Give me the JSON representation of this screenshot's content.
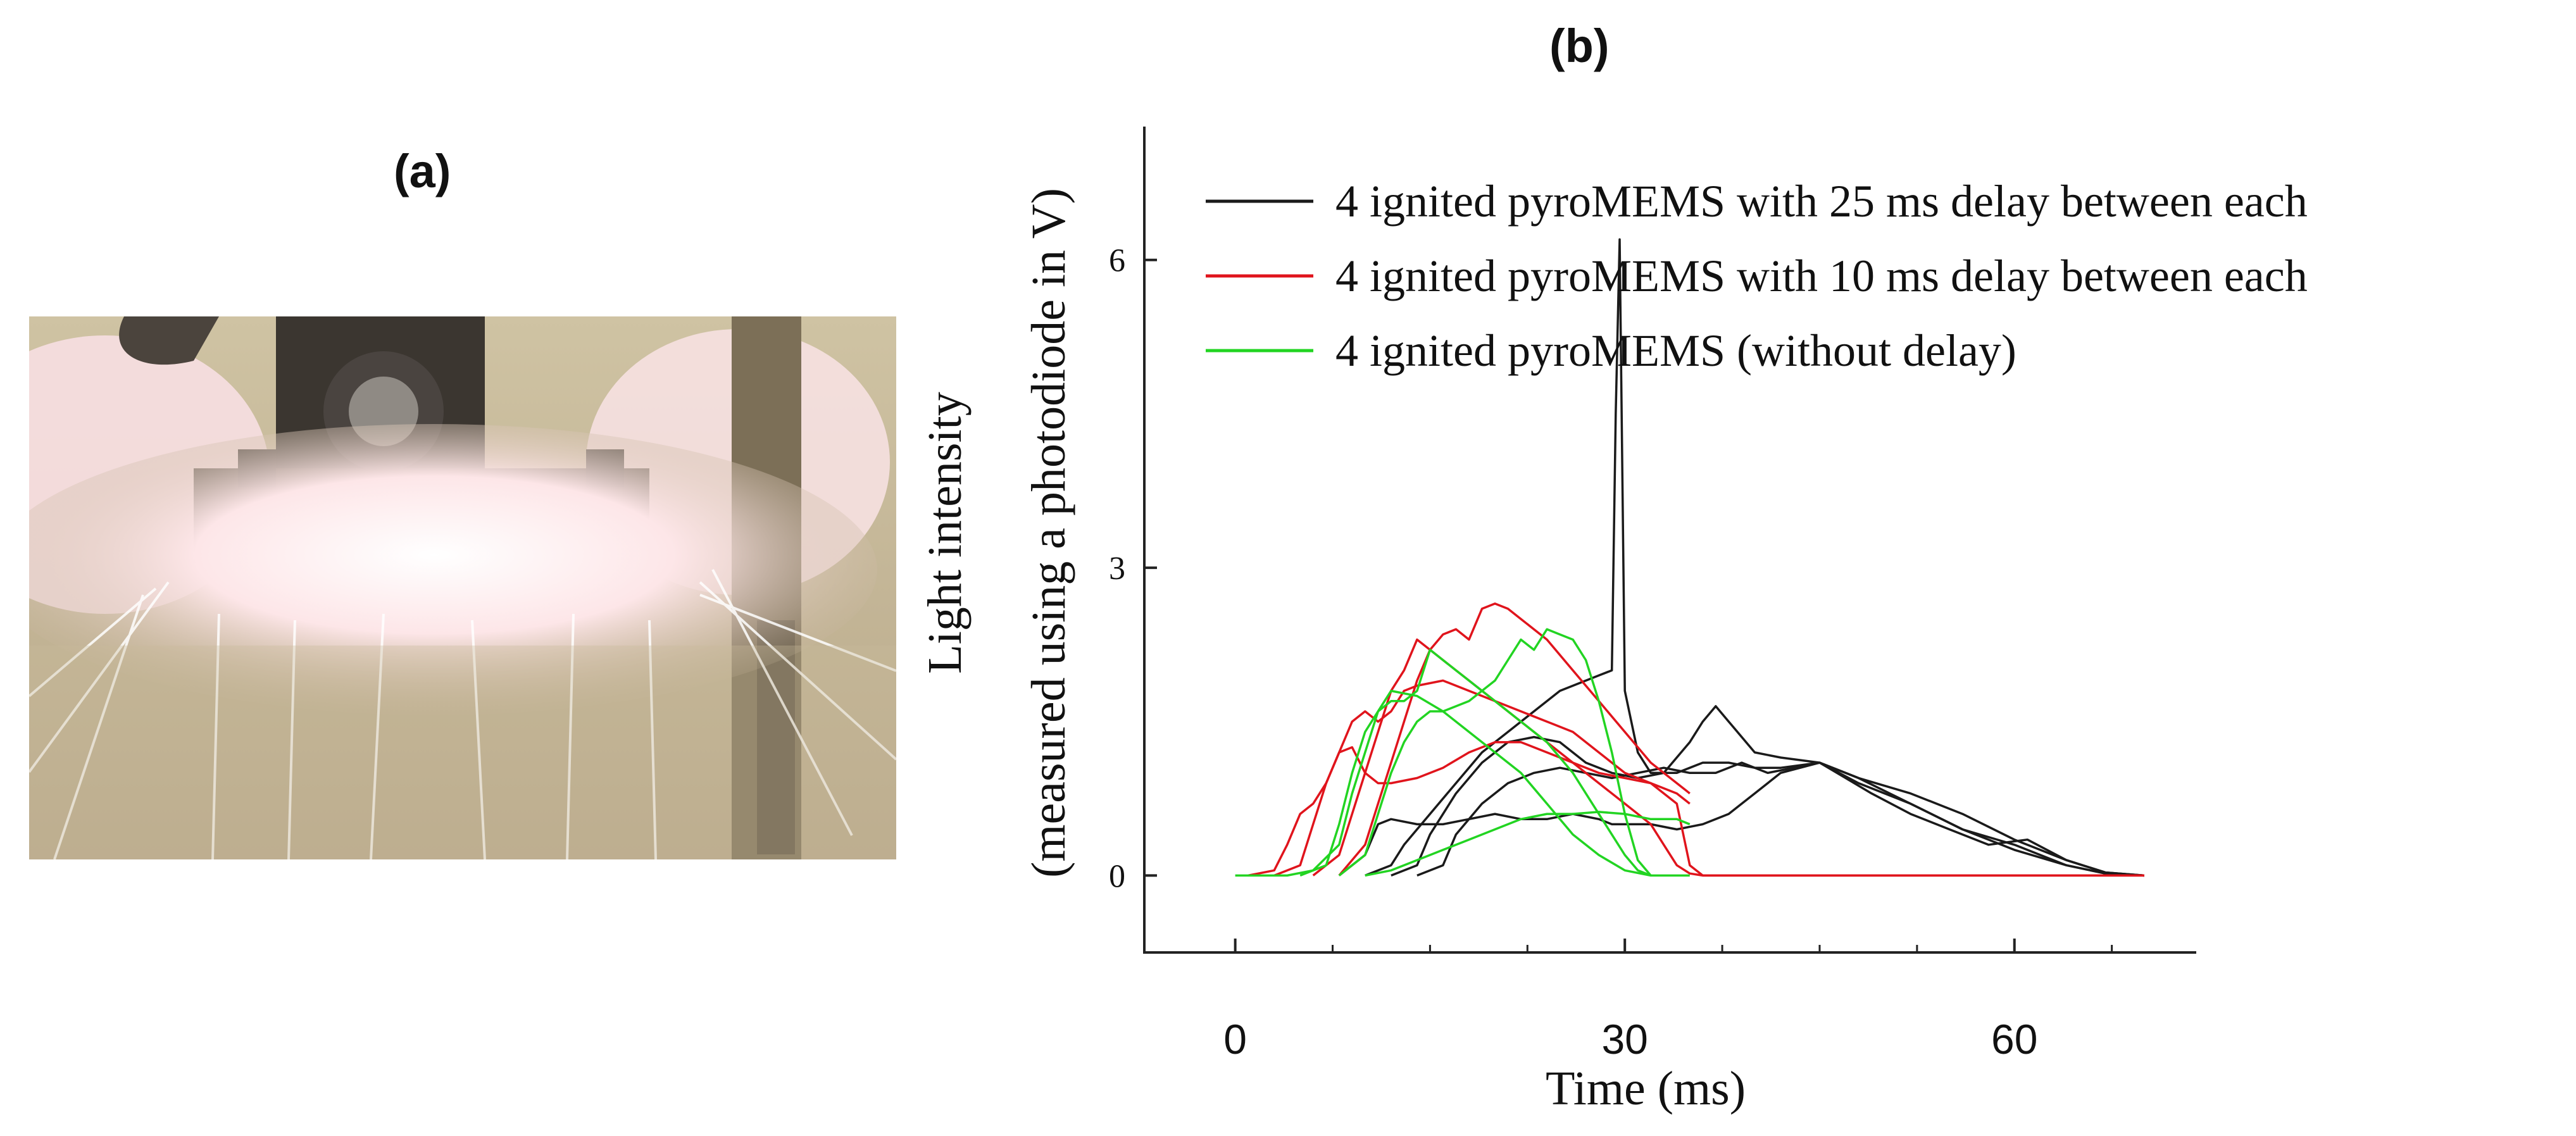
{
  "panels": {
    "a_label": "(a)",
    "b_label": "(b)"
  },
  "photo": {
    "subject": "pyroMEMS ignition photograph with sparks"
  },
  "colors": {
    "black": "#1a1a1a",
    "red": "#e0141c",
    "green": "#22d422"
  },
  "chart_data": {
    "type": "line",
    "xlabel": "Time (ms)",
    "ylabel_line1": "Light intensity",
    "ylabel_line2": "(measured using a photodiode in V)",
    "xlim": [
      -7,
      74
    ],
    "ylim": [
      -0.75,
      7.3
    ],
    "xticks": [
      0,
      30,
      60
    ],
    "xtick_labels": [
      "0",
      "30",
      "60"
    ],
    "xminor": [
      -7.5,
      7.5,
      15,
      22.5,
      37.5,
      45,
      52.5,
      67.5,
      75
    ],
    "yticks": [
      0,
      3,
      6
    ],
    "ytick_labels": [
      "0",
      "3",
      "6"
    ],
    "legend_position": "top-right",
    "legend": [
      {
        "label": "4 ignited pyroMEMS with 25 ms delay between each",
        "color": "#1a1a1a"
      },
      {
        "label": "4 ignited pyroMEMS with 10 ms delay between each",
        "color": "#e0141c"
      },
      {
        "label": "4 ignited pyroMEMS (without delay)",
        "color": "#22d422"
      }
    ],
    "series": [
      {
        "name": "25 ms delay trace 1",
        "color": "#1a1a1a",
        "x": [
          8,
          10,
          11,
          12,
          14,
          16,
          18,
          20,
          22,
          24,
          26,
          28,
          29,
          30,
          32,
          34,
          36,
          38,
          40,
          42,
          45,
          48,
          52,
          56,
          60,
          64,
          67,
          70
        ],
        "y": [
          0,
          0.2,
          0.5,
          0.55,
          0.5,
          0.5,
          0.55,
          0.6,
          0.55,
          0.55,
          0.6,
          0.55,
          0.5,
          0.5,
          0.5,
          0.45,
          0.5,
          0.6,
          0.8,
          1.0,
          1.1,
          0.95,
          0.8,
          0.6,
          0.35,
          0.15,
          0.03,
          0
        ]
      },
      {
        "name": "25 ms delay trace 2",
        "color": "#1a1a1a",
        "x": [
          10,
          12,
          13,
          15,
          17,
          19,
          21,
          23,
          25,
          27,
          28,
          29,
          29.3,
          29.6,
          30,
          31,
          32,
          34,
          36,
          38,
          40,
          42,
          45,
          48,
          52,
          56,
          60,
          64,
          67,
          70
        ],
        "y": [
          0,
          0.1,
          0.3,
          0.6,
          0.9,
          1.2,
          1.4,
          1.6,
          1.8,
          1.9,
          1.95,
          2.0,
          4.5,
          6.2,
          1.8,
          1.2,
          1.0,
          1.0,
          1.1,
          1.1,
          1.05,
          1.05,
          1.1,
          0.95,
          0.7,
          0.45,
          0.25,
          0.1,
          0.02,
          0
        ]
      },
      {
        "name": "25 ms delay trace 3",
        "color": "#1a1a1a",
        "x": [
          12,
          14,
          15,
          17,
          19,
          21,
          23,
          25,
          27,
          29,
          31,
          33,
          35,
          36,
          37,
          38,
          40,
          42,
          45,
          48,
          52,
          56,
          60,
          64,
          67,
          70
        ],
        "y": [
          0,
          0.1,
          0.4,
          0.8,
          1.1,
          1.3,
          1.35,
          1.3,
          1.1,
          1.0,
          0.95,
          1.0,
          1.3,
          1.5,
          1.65,
          1.5,
          1.2,
          1.15,
          1.1,
          0.9,
          0.7,
          0.45,
          0.3,
          0.1,
          0.02,
          0
        ]
      },
      {
        "name": "25 ms delay trace 4",
        "color": "#1a1a1a",
        "x": [
          14,
          16,
          17,
          19,
          21,
          23,
          25,
          27,
          29,
          31,
          33,
          35,
          37,
          39,
          41,
          43,
          45,
          47,
          49,
          52,
          55,
          58,
          61,
          64,
          67,
          70
        ],
        "y": [
          0,
          0.1,
          0.4,
          0.7,
          0.9,
          1.0,
          1.05,
          1.0,
          0.95,
          1.0,
          1.05,
          1.0,
          1.0,
          1.1,
          1.0,
          1.05,
          1.1,
          0.95,
          0.8,
          0.6,
          0.45,
          0.3,
          0.35,
          0.15,
          0.03,
          0
        ]
      },
      {
        "name": "10 ms delay trace 1",
        "color": "#e0141c",
        "x": [
          1,
          3,
          4,
          5,
          6,
          7,
          8,
          9,
          10,
          11,
          12,
          14,
          16,
          18,
          20,
          22,
          24,
          26,
          28,
          30,
          32,
          34,
          35,
          36,
          40,
          50,
          60,
          70
        ],
        "y": [
          0,
          0.05,
          0.3,
          0.6,
          0.7,
          0.9,
          1.2,
          1.25,
          1.0,
          0.9,
          0.9,
          0.95,
          1.05,
          1.2,
          1.3,
          1.3,
          1.2,
          1.1,
          1.0,
          0.95,
          0.9,
          0.7,
          0.1,
          0,
          0,
          0,
          0,
          0
        ]
      },
      {
        "name": "10 ms delay trace 2",
        "color": "#e0141c",
        "x": [
          3,
          5,
          6,
          7,
          8,
          9,
          10,
          11,
          12,
          13,
          14,
          16,
          18,
          20,
          22,
          24,
          26,
          28,
          30,
          32,
          34,
          35
        ],
        "y": [
          0,
          0.1,
          0.5,
          0.9,
          1.2,
          1.5,
          1.6,
          1.5,
          1.6,
          1.8,
          1.85,
          1.9,
          1.8,
          1.7,
          1.6,
          1.5,
          1.4,
          1.2,
          1.0,
          0.9,
          0.8,
          0.7
        ]
      },
      {
        "name": "10 ms delay trace 3",
        "color": "#e0141c",
        "x": [
          6,
          8,
          9,
          10,
          11,
          12,
          13,
          14,
          15,
          16,
          17,
          18,
          19,
          20,
          21,
          22,
          24,
          26,
          28,
          30,
          32,
          34,
          35
        ],
        "y": [
          0,
          0.2,
          0.6,
          1.0,
          1.4,
          1.8,
          2.0,
          2.3,
          2.2,
          2.35,
          2.4,
          2.3,
          2.6,
          2.65,
          2.6,
          2.5,
          2.3,
          2.0,
          1.7,
          1.4,
          1.1,
          0.9,
          0.8
        ]
      },
      {
        "name": "10 ms delay trace 4",
        "color": "#e0141c",
        "x": [
          8,
          10,
          11,
          12,
          13,
          14,
          15,
          16,
          18,
          20,
          22,
          24,
          26,
          28,
          30,
          32,
          33,
          34,
          35,
          36,
          40,
          50,
          60,
          70
        ],
        "y": [
          0,
          0.3,
          0.7,
          1.1,
          1.5,
          1.9,
          2.2,
          2.1,
          1.9,
          1.7,
          1.5,
          1.3,
          1.1,
          0.9,
          0.7,
          0.5,
          0.3,
          0.1,
          0.02,
          0,
          0,
          0,
          0,
          0
        ]
      },
      {
        "name": "no delay trace 1",
        "color": "#22d422",
        "x": [
          0,
          2,
          4,
          6,
          8,
          9,
          10,
          11,
          12,
          14,
          16,
          18,
          20,
          22,
          24,
          26,
          28,
          30,
          32,
          34,
          35
        ],
        "y": [
          0,
          0,
          0,
          0.05,
          0.3,
          0.8,
          1.2,
          1.6,
          1.8,
          1.75,
          1.6,
          1.4,
          1.2,
          1.0,
          0.7,
          0.4,
          0.2,
          0.05,
          0,
          0,
          0
        ]
      },
      {
        "name": "no delay trace 2",
        "color": "#22d422",
        "x": [
          5,
          7,
          8,
          9,
          10,
          11,
          12,
          13,
          14,
          15,
          16,
          17,
          18,
          20,
          22,
          24,
          26,
          28,
          30,
          31,
          32
        ],
        "y": [
          0,
          0.1,
          0.5,
          1.0,
          1.4,
          1.6,
          1.7,
          1.7,
          1.8,
          2.2,
          2.1,
          2.0,
          1.9,
          1.7,
          1.5,
          1.3,
          1.0,
          0.6,
          0.2,
          0.05,
          0
        ]
      },
      {
        "name": "no delay trace 3",
        "color": "#22d422",
        "x": [
          8,
          10,
          11,
          12,
          13,
          14,
          15,
          16,
          18,
          20,
          21,
          22,
          23,
          24,
          25,
          26,
          27,
          28,
          29,
          30,
          31,
          32
        ],
        "y": [
          0,
          0.2,
          0.6,
          1.0,
          1.3,
          1.5,
          1.6,
          1.6,
          1.7,
          1.9,
          2.1,
          2.3,
          2.2,
          2.4,
          2.35,
          2.3,
          2.1,
          1.7,
          1.2,
          0.6,
          0.15,
          0
        ]
      },
      {
        "name": "no delay trace 4",
        "color": "#22d422",
        "x": [
          10,
          12,
          14,
          16,
          18,
          20,
          22,
          24,
          26,
          28,
          30,
          32,
          34,
          35
        ],
        "y": [
          0,
          0.05,
          0.15,
          0.25,
          0.35,
          0.45,
          0.55,
          0.6,
          0.6,
          0.62,
          0.6,
          0.55,
          0.55,
          0.5
        ]
      }
    ]
  }
}
